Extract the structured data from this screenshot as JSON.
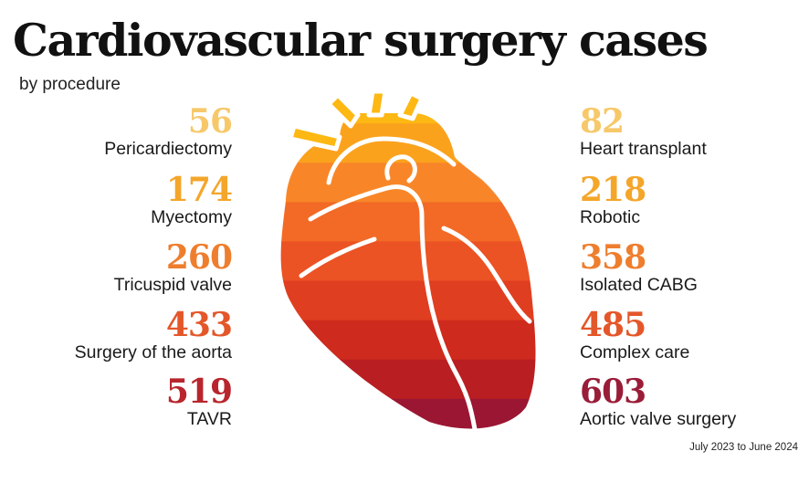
{
  "header": {
    "title": "Cardiovascular surgery cases",
    "subtitle": "by procedure"
  },
  "footer": {
    "date_range": "July 2023 to June 2024"
  },
  "colors": {
    "level1": "#F7C86A",
    "level2": "#F4A62A",
    "level3": "#EE7E2E",
    "level4": "#E4572A",
    "level5": "#B8252D",
    "level6": "#9A1C38",
    "heart_bands": [
      "#FDB813",
      "#FBA21D",
      "#F88628",
      "#F26A25",
      "#EB5224",
      "#E03E20",
      "#CE2A1E",
      "#B81E22",
      "#9B1633"
    ]
  },
  "chart_data": {
    "type": "table",
    "title": "Cardiovascular surgery cases",
    "subtitle": "by procedure",
    "categories": [
      "Pericardiectomy",
      "Myectomy",
      "Tricuspid valve",
      "Surgery of the aorta",
      "TAVR",
      "Heart transplant",
      "Robotic",
      "Isolated CABG",
      "Complex care",
      "Aortic valve surgery"
    ],
    "values": [
      56,
      174,
      260,
      433,
      519,
      82,
      218,
      358,
      485,
      603
    ],
    "left_column": [
      {
        "label": "Pericardiectomy",
        "value": 56,
        "color": "#F7C86A"
      },
      {
        "label": "Myectomy",
        "value": 174,
        "color": "#F4A62A"
      },
      {
        "label": "Tricuspid valve",
        "value": 260,
        "color": "#EE7E2E"
      },
      {
        "label": "Surgery of the aorta",
        "value": 433,
        "color": "#E4572A"
      },
      {
        "label": "TAVR",
        "value": 519,
        "color": "#B8252D"
      }
    ],
    "right_column": [
      {
        "label": "Heart transplant",
        "value": 82,
        "color": "#F7C86A"
      },
      {
        "label": "Robotic",
        "value": 218,
        "color": "#F4A62A"
      },
      {
        "label": "Isolated CABG",
        "value": 358,
        "color": "#EE7E2E"
      },
      {
        "label": "Complex care",
        "value": 485,
        "color": "#E4572A"
      },
      {
        "label": "Aortic valve surgery",
        "value": 603,
        "color": "#9A1C38"
      }
    ],
    "footnote": "July 2023 to June 2024"
  }
}
